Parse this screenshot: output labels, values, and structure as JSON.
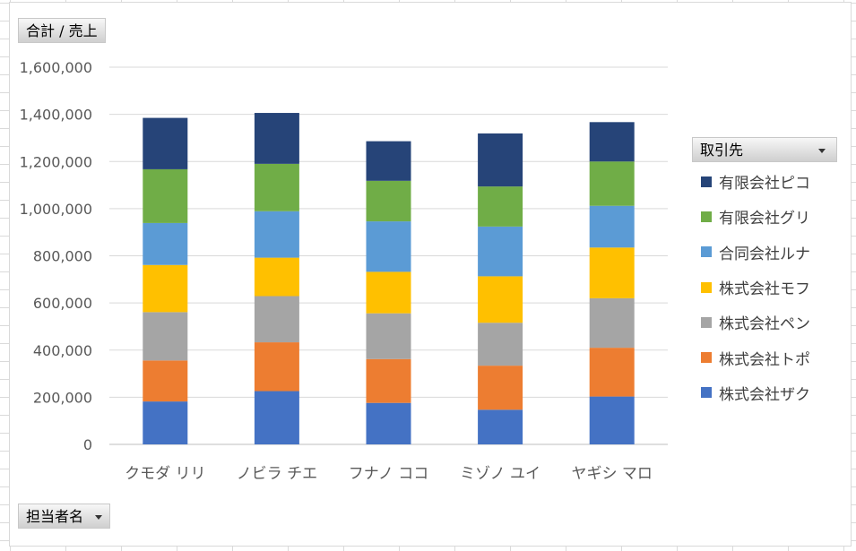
{
  "value_field": "合計 / 売上",
  "category_field": "担当者名",
  "legend_field": "取引先",
  "chart_data": {
    "type": "bar",
    "stacked": true,
    "categories": [
      "クモダ リリ",
      "ノビラ チエ",
      "フナノ ココ",
      "ミゾノ ユイ",
      "ヤギシ マロ"
    ],
    "ylim": [
      0,
      1600000
    ],
    "yticks": [
      "0",
      "200,000",
      "400,000",
      "600,000",
      "800,000",
      "1,000,000",
      "1,200,000",
      "1,400,000",
      "1,600,000"
    ],
    "grid": true,
    "legend_position": "right",
    "series": [
      {
        "name": "株式会社ザク",
        "color": "#4472C4",
        "values": [
          182000,
          226000,
          176000,
          147000,
          203000
        ]
      },
      {
        "name": "株式会社トポ",
        "color": "#ED7D31",
        "values": [
          174000,
          207000,
          186000,
          187000,
          207000
        ]
      },
      {
        "name": "株式会社ペン",
        "color": "#A5A5A5",
        "values": [
          205000,
          196000,
          194000,
          182000,
          210000
        ]
      },
      {
        "name": "株式会社モフ",
        "color": "#FFC000",
        "values": [
          200000,
          163000,
          176000,
          197000,
          215000
        ]
      },
      {
        "name": "合同会社ルナ",
        "color": "#5B9BD5",
        "values": [
          178000,
          197000,
          214000,
          211000,
          177000
        ]
      },
      {
        "name": "有限会社グリ",
        "color": "#70AD47",
        "values": [
          228000,
          201000,
          172000,
          170000,
          188000
        ]
      },
      {
        "name": "有限会社ピコ",
        "color": "#264478",
        "values": [
          218000,
          216000,
          168000,
          225000,
          167000
        ]
      }
    ]
  }
}
